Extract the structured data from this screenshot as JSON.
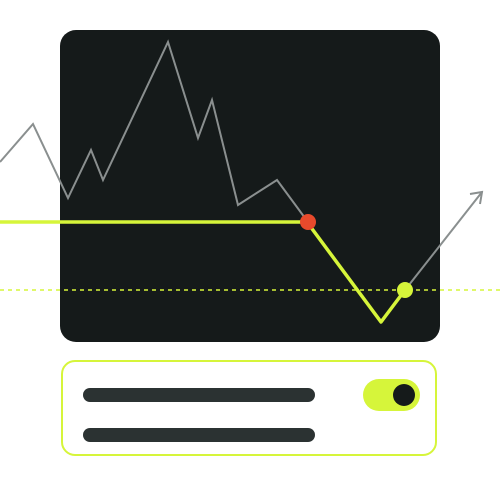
{
  "colors": {
    "panel": "#151a1a",
    "accent": "#d6f53a",
    "gray_line": "#8a8f8f",
    "marker_red": "#e84a2c",
    "marker_lime": "#d6f53a",
    "text_placeholder": "#2b3232"
  },
  "chart": {
    "type": "line",
    "has_axes": false,
    "has_gridlines": false,
    "price_line_color": "gray",
    "trend_line_color": "lime",
    "reference_line_style": "dashed",
    "end_marker_icon": "arrow-up-right-icon",
    "markers": [
      "red-dot",
      "lime-dot"
    ]
  },
  "settings_card": {
    "placeholder_lines": 2,
    "toggle": {
      "state": "on",
      "icon": "toggle-switch-icon"
    }
  }
}
